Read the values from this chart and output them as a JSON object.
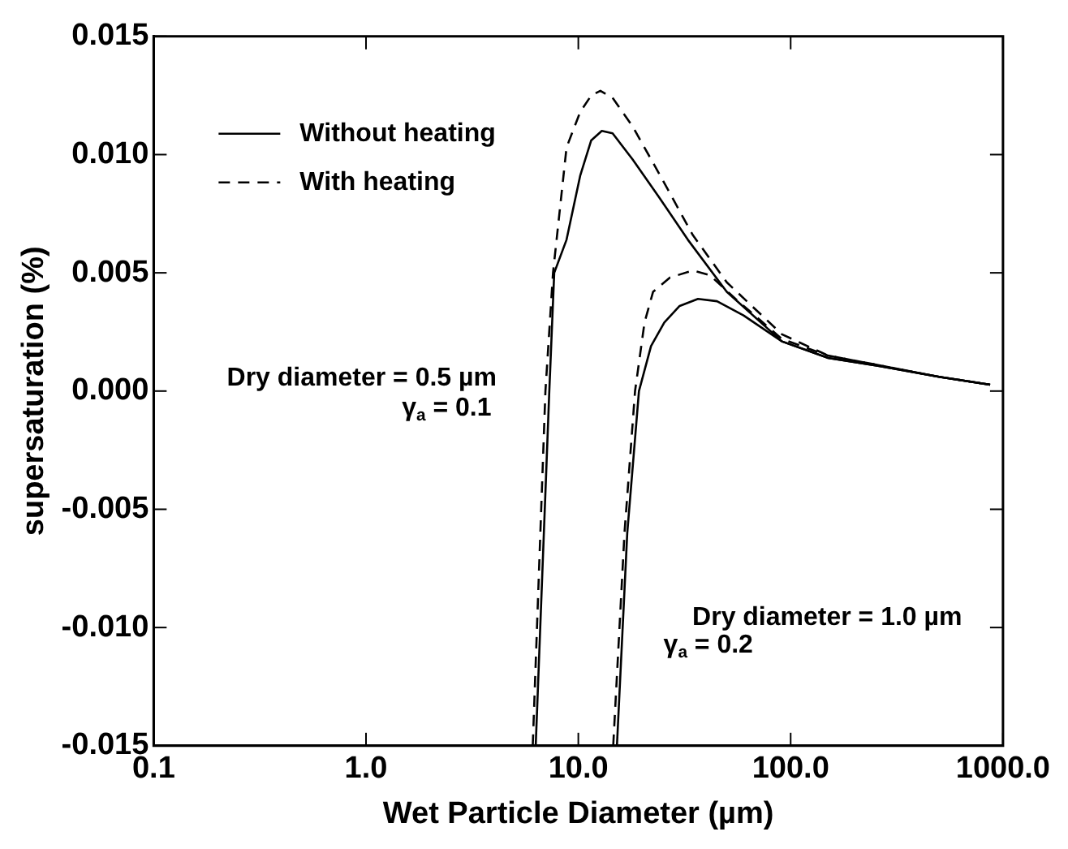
{
  "chart_data": {
    "type": "line",
    "xlabel": "Wet Particle Diameter (µm)",
    "ylabel": "supersaturation (%)",
    "log": "x",
    "grid": false,
    "legend": "top left",
    "marker": "none",
    "xlim": [
      0.1,
      1000
    ],
    "xticks": [
      0.1,
      {
        "value": 1,
        "label": "1.0"
      },
      {
        "value": 10,
        "label": "10.0"
      },
      {
        "value": 100,
        "label": "100.0"
      },
      {
        "value": 1000,
        "label": "1000.0"
      }
    ],
    "ylim": [
      -0.015,
      0.015
    ],
    "yticks": [
      -0.015,
      {
        "value": -0.01,
        "label": "-0.010"
      },
      -0.005,
      {
        "value": 0,
        "label": "0.000"
      },
      0.005,
      {
        "value": 0.01,
        "label": "0.010"
      },
      0.015
    ],
    "series": [
      {
        "name": "Without heating",
        "color": "#000000",
        "line_style": "solid",
        "x": [
          6.3,
          7.3,
          7.7,
          8.8,
          10.2,
          11.5,
          12.9,
          14.5,
          18,
          24,
          32.8,
          50,
          91,
          150,
          258,
          500,
          870
        ],
        "values": [
          -0.015,
          0,
          0.005,
          0.0064,
          0.0091,
          0.0106,
          0.011,
          0.0109,
          0.0098,
          0.0082,
          0.0064,
          0.0042,
          0.0021,
          0.0014,
          0.00107,
          0.0006,
          0.00027
        ]
      },
      {
        "name": "With heating",
        "color": "#000000",
        "line_style": "dashed",
        "x": [
          6.1,
          7.0,
          7.6,
          8.8,
          10.2,
          11.5,
          12.7,
          14.5,
          18,
          24,
          34.6,
          50,
          91,
          150,
          258,
          500,
          870
        ],
        "values": [
          -0.015,
          0,
          0.005,
          0.0103,
          0.0118,
          0.0125,
          0.0127,
          0.0124,
          0.0112,
          0.0092,
          0.0066,
          0.0046,
          0.0024,
          0.0015,
          0.0011,
          0.0006,
          0.00027
        ]
      },
      {
        "color": "#000000",
        "line_style": "solid",
        "x": [
          15.2,
          17,
          19.3,
          22,
          25.4,
          30,
          36.6,
          45,
          60,
          91,
          150,
          258,
          500,
          870
        ],
        "values": [
          -0.015,
          -0.006,
          0,
          0.0019,
          0.0029,
          0.0036,
          0.0039,
          0.0038,
          0.0032,
          0.0021,
          0.0014,
          0.00107,
          0.0006,
          0.00027
        ]
      },
      {
        "color": "#000000",
        "line_style": "dashed",
        "x": [
          14.6,
          16.5,
          18.5,
          20.5,
          22.5,
          27,
          34.6,
          41.6,
          55,
          91,
          150,
          258,
          500,
          870
        ],
        "values": [
          -0.015,
          -0.006,
          0,
          0.0029,
          0.0042,
          0.0048,
          0.0051,
          0.0049,
          0.0039,
          0.0022,
          0.0015,
          0.0011,
          0.0006,
          0.00027
        ]
      }
    ],
    "annotations": [
      "Dry diameter = 0.5 µm",
      "γ$_{a}$ = 0.1",
      "Dry diameter = 1.0 µm",
      "γ$_{a}$ = 0.2"
    ]
  }
}
